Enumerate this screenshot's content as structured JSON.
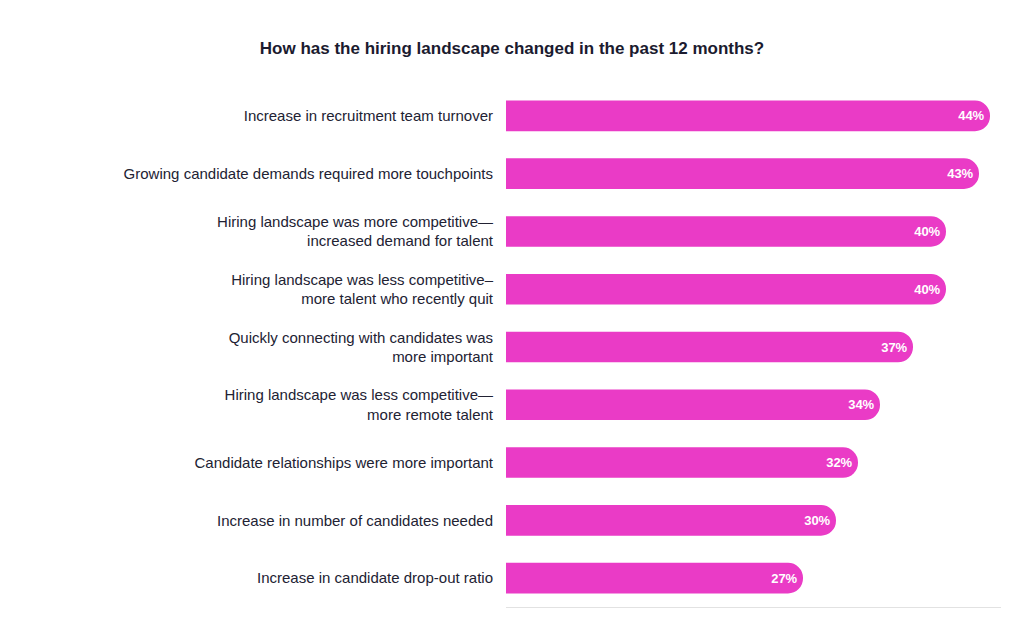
{
  "chart_data": {
    "type": "bar",
    "orientation": "horizontal",
    "title": "How has the hiring landscape changed in the past 12 months?",
    "categories": [
      "Increase in recruitment team turnover",
      "Growing candidate demands required more touchpoints",
      "Hiring landscape was more competitive—\nincreased demand for talent",
      "Hiring landscape was less competitive–\nmore talent who recently quit",
      "Quickly connecting with candidates was\nmore important",
      "Hiring landscape was less competitive—\nmore remote talent",
      "Candidate relationships were more important",
      "Increase in number of candidates needed",
      "Increase in candidate drop-out ratio"
    ],
    "values": [
      44,
      43,
      40,
      40,
      37,
      34,
      32,
      30,
      27
    ],
    "value_labels": [
      "44%",
      "43%",
      "40%",
      "40%",
      "37%",
      "34%",
      "32%",
      "30%",
      "27%"
    ],
    "color": "#ea3bc6",
    "xlim": [
      0,
      45
    ],
    "data_labels": true,
    "tick_labels": "y",
    "grid": false
  }
}
